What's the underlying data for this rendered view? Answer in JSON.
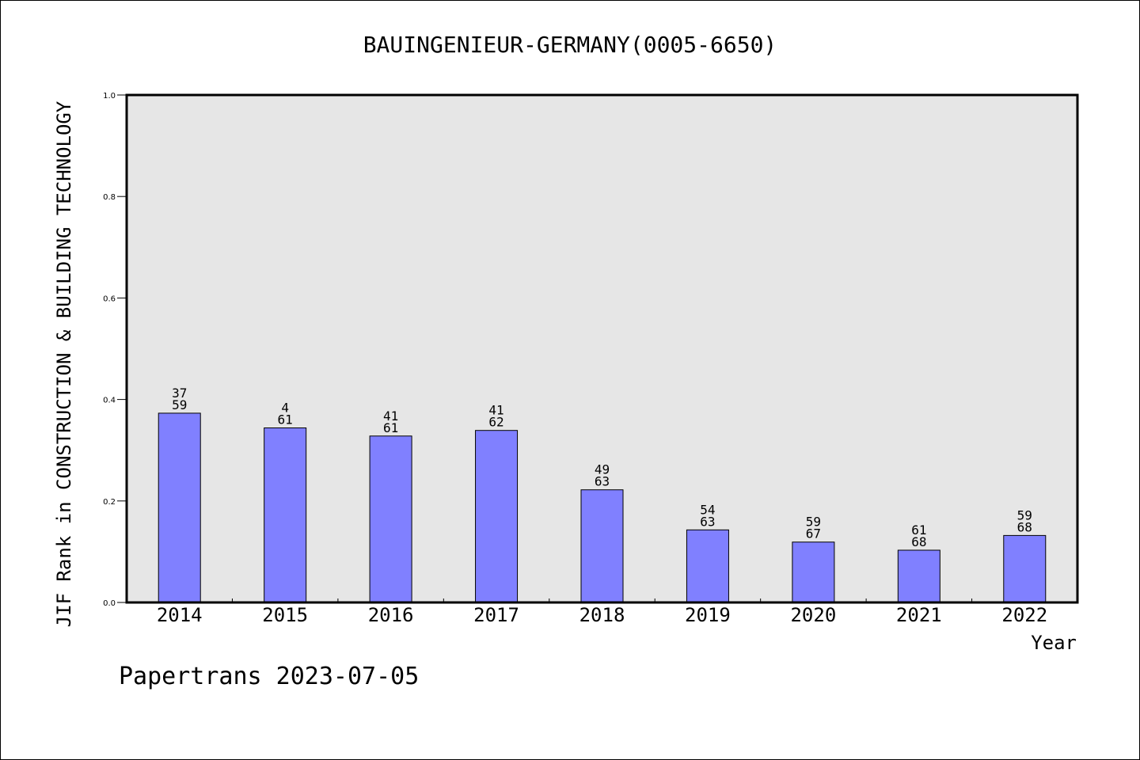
{
  "chart_data": {
    "type": "bar",
    "title": "BAUINGENIEUR-GERMANY(0005-6650)",
    "xlabel": "Year",
    "ylabel": "JIF Rank in CONSTRUCTION & BUILDING TECHNOLOGY",
    "ylim": [
      0,
      1.0
    ],
    "yticks": [
      "0.0",
      "0.2",
      "0.4",
      "0.6",
      "0.8",
      "1.0"
    ],
    "grid": false,
    "categories": [
      "2014",
      "2015",
      "2016",
      "2017",
      "2018",
      "2019",
      "2020",
      "2021",
      "2022"
    ],
    "values": [
      0.373,
      0.344,
      0.328,
      0.339,
      0.222,
      0.143,
      0.119,
      0.103,
      0.132
    ],
    "bar_labels_top": [
      "37",
      "4",
      "41",
      "41",
      "49",
      "54",
      "59",
      "61",
      "59"
    ],
    "bar_labels_bottom": [
      "59",
      "61",
      "61",
      "62",
      "63",
      "63",
      "67",
      "68",
      "68"
    ],
    "bar_color": "#8080ff",
    "plot_background": "#e6e6e6"
  },
  "footer": "Papertrans 2023-07-05"
}
